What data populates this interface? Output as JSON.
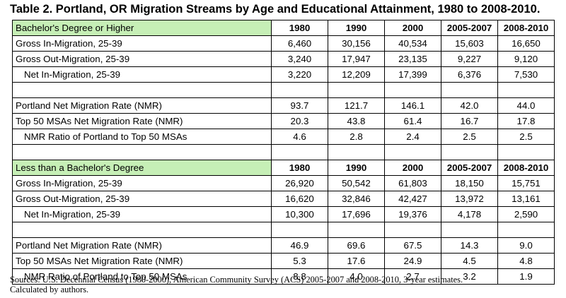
{
  "title": "Table 2.  Portland, OR Migration Streams by Age and Educational Attainment, 1980 to 2008-2010.",
  "columns": [
    "1980",
    "1990",
    "2000",
    "2005-2007",
    "2008-2010"
  ],
  "sections": [
    {
      "label": "Bachelor's Degree or Higher",
      "rows": [
        {
          "label": "Gross In-Migration, 25-39",
          "values": [
            "6,460",
            "30,156",
            "40,534",
            "15,603",
            "16,650"
          ]
        },
        {
          "label": "Gross Out-Migration, 25-39",
          "values": [
            "3,240",
            "17,947",
            "23,135",
            "9,227",
            "9,120"
          ]
        },
        {
          "label": "Net In-Migration, 25-39",
          "values": [
            "3,220",
            "12,209",
            "17,399",
            "6,376",
            "7,530"
          ]
        },
        {
          "label": "Portland Net Migration Rate (NMR)",
          "values": [
            "93.7",
            "121.7",
            "146.1",
            "42.0",
            "44.0"
          ]
        },
        {
          "label": "Top 50 MSAs Net Migration Rate (NMR)",
          "values": [
            "20.3",
            "43.8",
            "61.4",
            "16.7",
            "17.8"
          ]
        },
        {
          "label": "NMR Ratio of Portland to Top 50 MSAs",
          "values": [
            "4.6",
            "2.8",
            "2.4",
            "2.5",
            "2.5"
          ]
        }
      ]
    },
    {
      "label": "Less than a Bachelor's Degree",
      "rows": [
        {
          "label": "Gross In-Migration, 25-39",
          "values": [
            "26,920",
            "50,542",
            "61,803",
            "18,150",
            "15,751"
          ]
        },
        {
          "label": "Gross Out-Migration, 25-39",
          "values": [
            "16,620",
            "32,846",
            "42,427",
            "13,972",
            "13,161"
          ]
        },
        {
          "label": "Net In-Migration, 25-39",
          "values": [
            "10,300",
            "17,696",
            "19,376",
            "4,178",
            "2,590"
          ]
        },
        {
          "label": "Portland Net Migration Rate (NMR)",
          "values": [
            "46.9",
            "69.6",
            "67.5",
            "14.3",
            "9.0"
          ]
        },
        {
          "label": "Top 50 MSAs Net Migration Rate (NMR)",
          "values": [
            "5.3",
            "17.6",
            "24.9",
            "4.5",
            "4.8"
          ]
        },
        {
          "label": "NMR Ratio of Portland to Top 50 MSAs",
          "values": [
            "8.8",
            "4.0",
            "2.7",
            "3.2",
            "1.9"
          ]
        }
      ]
    }
  ],
  "sources": {
    "line1": "Sources: U.S. Decennial Census (1980-2000), American Community Survey (ACS) 2005-2007 and 2008-2010, 3-year estimates.",
    "line2": "Calculated by authors."
  },
  "colors": {
    "section_header_bg": "#c6efb6"
  }
}
